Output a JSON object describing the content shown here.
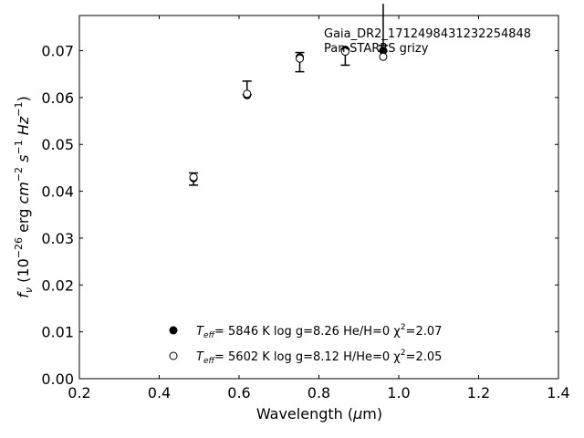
{
  "chart_data": {
    "type": "scatter",
    "title": "",
    "xlabel": "Wavelength (μm)",
    "ylabel": "f_ν (10^−26 erg cm^−2 s^−1 Hz^−1)",
    "xlim": [
      0.2,
      1.4
    ],
    "ylim": [
      0.0,
      0.0775
    ],
    "x_ticks": [
      0.2,
      0.4,
      0.6,
      0.8,
      1.0,
      1.2,
      1.4
    ],
    "x_tick_labels": [
      "0.2",
      "0.4",
      "0.6",
      "0.8",
      "1.0",
      "1.2",
      "1.4"
    ],
    "y_ticks": [
      0.0,
      0.01,
      0.02,
      0.03,
      0.04,
      0.05,
      0.06,
      0.07
    ],
    "y_tick_labels": [
      "0.00",
      "0.01",
      "0.02",
      "0.03",
      "0.04",
      "0.05",
      "0.06",
      "0.07"
    ],
    "grid": false,
    "annotations": [
      "Gaia_DR2_1712498431232254848",
      "Pan-STARRS grizy"
    ],
    "observed": {
      "x": [
        0.486,
        0.62,
        0.752,
        0.866,
        0.961
      ],
      "y": [
        0.0428,
        0.0609,
        0.0681,
        0.0699,
        0.0715
      ],
      "yerr_low": [
        0.0015,
        0.0003,
        0.0026,
        0.003,
        0.0004
      ],
      "yerr_high": [
        0.0011,
        0.0026,
        0.0015,
        0.0004,
        0.0085
      ]
    },
    "series": [
      {
        "marker": "filled-circle",
        "label_prefix": "T",
        "label_sub": "eff",
        "label_rest": "=  5846 K  log g=8.26  He/H=0  χ",
        "label_sup": "2",
        "label_end": "=2.07",
        "x": [
          0.486,
          0.62,
          0.752,
          0.866,
          0.961
        ],
        "y": [
          0.0428,
          0.0605,
          0.0686,
          0.0702,
          0.07
        ]
      },
      {
        "marker": "open-circle",
        "label_prefix": "T",
        "label_sub": "eff",
        "label_rest": "=  5602 K  log g=8.12  H/He=0  χ",
        "label_sup": "2",
        "label_end": "=2.05",
        "x": [
          0.486,
          0.62,
          0.752,
          0.866,
          0.961
        ],
        "y": [
          0.043,
          0.0608,
          0.0683,
          0.0698,
          0.0687
        ]
      }
    ],
    "legend_placement": "lower-center"
  }
}
